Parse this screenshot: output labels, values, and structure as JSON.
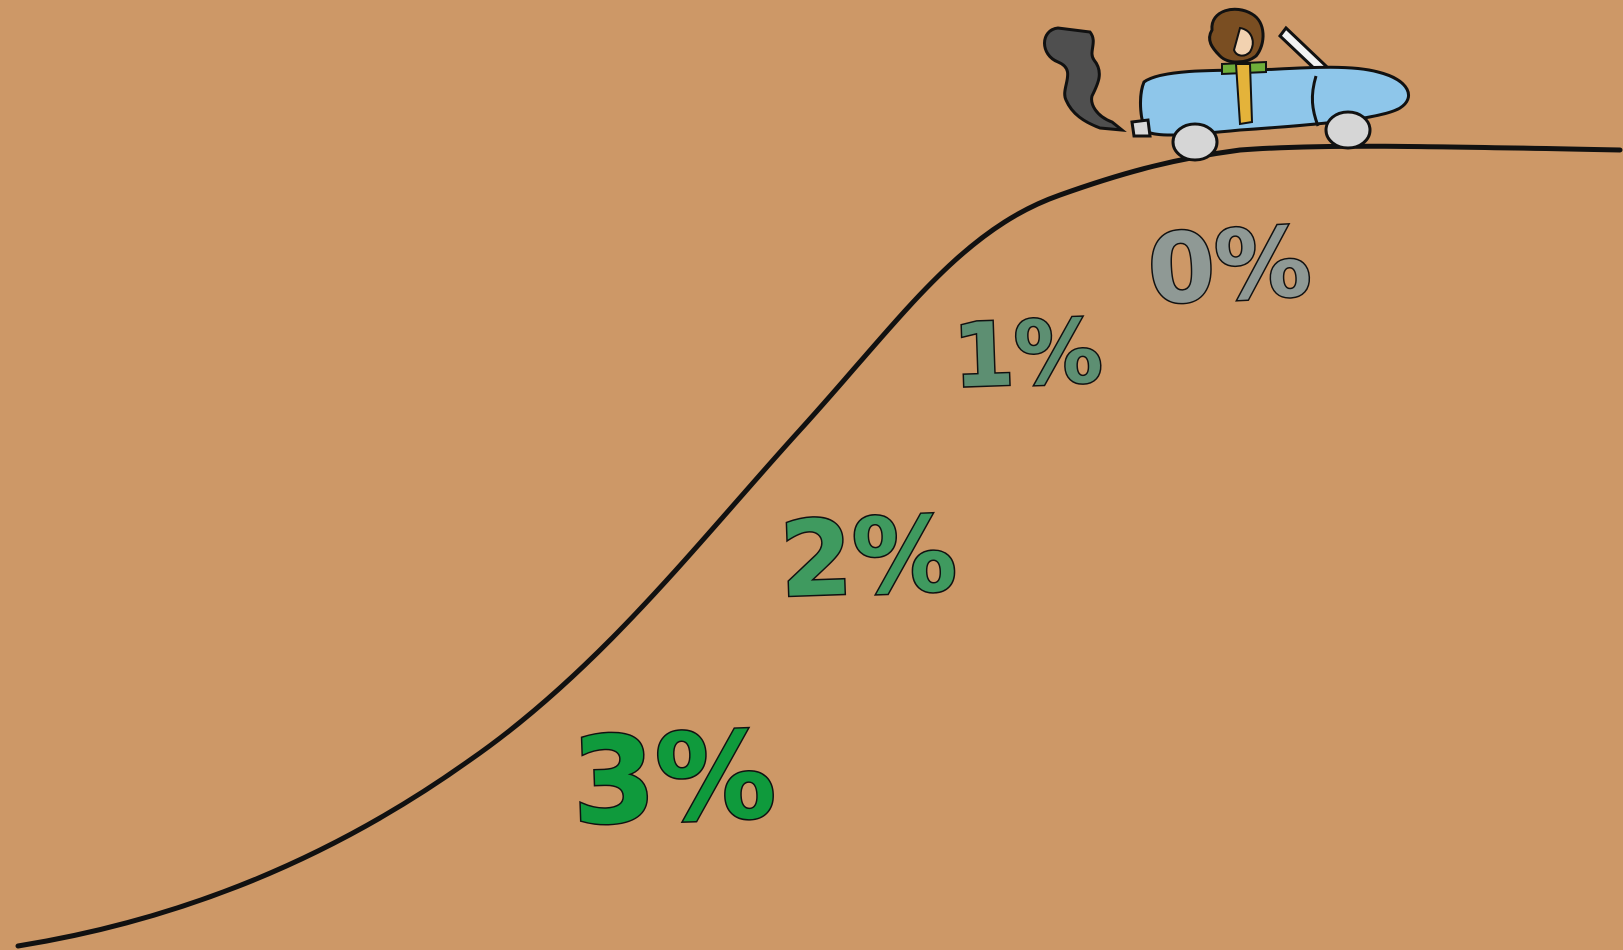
{
  "labels": {
    "zero": "0%",
    "one": "1%",
    "two": "2%",
    "three": "3%"
  },
  "colors": {
    "background": "#cd9867",
    "road_line": "#111111",
    "car_body": "#8ec6ea",
    "smoke": "#555555",
    "zero": "#8f9995",
    "one": "#5d8f72",
    "two": "#3f9a5f",
    "three": "#0f9a3c"
  },
  "illustration": {
    "hill": "s-curve-hill-line",
    "vehicle": "convertible-car-with-driver",
    "exhaust": "smoke-plume"
  }
}
